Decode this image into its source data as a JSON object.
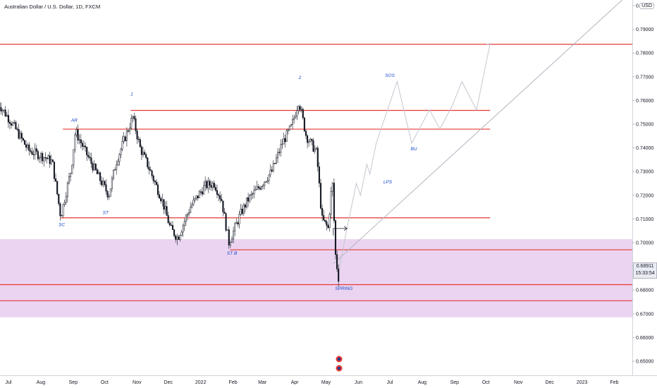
{
  "header": {
    "title": "Australian Dollar / U.S. Dollar, 1D, FXCM",
    "currency": "USD"
  },
  "price_label": {
    "value": "0.68911",
    "countdown": "15:33:54"
  },
  "colors": {
    "level_line": "#e53935",
    "zone_fill": "#e6cdee",
    "trendline": "#b2b5be",
    "candle": "#131722",
    "annotation": "#1848cc"
  },
  "chart_data": {
    "type": "candlestick",
    "title": "Australian Dollar / U.S. Dollar, 1D, FXCM",
    "y_axis": {
      "position": "right",
      "ticks": [
        "0.65000",
        "0.66000",
        "0.67000",
        "0.68000",
        "0.69000",
        "0.70000",
        "0.71000",
        "0.72000",
        "0.73000",
        "0.74000",
        "0.75000",
        "0.76000",
        "0.77000",
        "0.78000",
        "0.79000",
        "0.80000"
      ],
      "range": [
        0.6445,
        0.8025
      ]
    },
    "x_axis": {
      "ticks": [
        "Jul",
        "Aug",
        "Sep",
        "Oct",
        "Nov",
        "Dec",
        "2022",
        "Feb",
        "Mar",
        "Apr",
        "May",
        "Jun",
        "Jul",
        "Aug",
        "Sep",
        "Oct",
        "Nov",
        "Dec",
        "2023",
        "Feb"
      ],
      "tick_dates": [
        "2021-07-01",
        "2021-08-01",
        "2021-09-01",
        "2021-10-01",
        "2021-11-01",
        "2021-12-01",
        "2022-01-01",
        "2022-02-01",
        "2022-03-01",
        "2022-04-01",
        "2022-05-01",
        "2022-06-01",
        "2022-07-01",
        "2022-08-01",
        "2022-09-01",
        "2022-10-01",
        "2022-11-01",
        "2022-12-01",
        "2023-01-01",
        "2023-02-01"
      ]
    },
    "price_path": [
      [
        "2021-06-21",
        0.759
      ],
      [
        "2021-07-05",
        0.75
      ],
      [
        "2021-07-20",
        0.739
      ],
      [
        "2021-08-05",
        0.736
      ],
      [
        "2021-08-12",
        0.734
      ],
      [
        "2021-08-20",
        0.711
      ],
      [
        "2021-08-30",
        0.731
      ],
      [
        "2021-09-03",
        0.747
      ],
      [
        "2021-09-13",
        0.738
      ],
      [
        "2021-09-25",
        0.728
      ],
      [
        "2021-10-05",
        0.72
      ],
      [
        "2021-10-12",
        0.734
      ],
      [
        "2021-10-22",
        0.746
      ],
      [
        "2021-10-28",
        0.753
      ],
      [
        "2021-11-04",
        0.74
      ],
      [
        "2021-11-12",
        0.732
      ],
      [
        "2021-11-25",
        0.718
      ],
      [
        "2021-12-03",
        0.706
      ],
      [
        "2021-12-10",
        0.702
      ],
      [
        "2021-12-22",
        0.715
      ],
      [
        "2022-01-05",
        0.724
      ],
      [
        "2022-01-14",
        0.725
      ],
      [
        "2022-01-21",
        0.718
      ],
      [
        "2022-01-28",
        0.7
      ],
      [
        "2022-02-08",
        0.712
      ],
      [
        "2022-02-15",
        0.718
      ],
      [
        "2022-02-25",
        0.723
      ],
      [
        "2022-03-10",
        0.73
      ],
      [
        "2022-03-20",
        0.742
      ],
      [
        "2022-03-29",
        0.749
      ],
      [
        "2022-04-05",
        0.76
      ],
      [
        "2022-04-12",
        0.745
      ],
      [
        "2022-04-22",
        0.738
      ],
      [
        "2022-04-27",
        0.71
      ],
      [
        "2022-05-03",
        0.706
      ],
      [
        "2022-05-07",
        0.727
      ],
      [
        "2022-05-10",
        0.695
      ],
      [
        "2022-05-12",
        0.688
      ],
      [
        "2022-05-13",
        0.685
      ]
    ],
    "horizontal_levels": [
      0.7837,
      0.7558,
      0.7479,
      0.7105,
      0.697,
      0.6823,
      0.6755
    ],
    "zones": [
      {
        "from": 0.6685,
        "to": 0.7015
      }
    ],
    "trendline": {
      "start": [
        "2022-05-08",
        0.6911
      ],
      "end": [
        "2023-02-10",
        0.803
      ]
    },
    "projection_path": [
      [
        "2022-05-13",
        0.688
      ],
      [
        "2022-05-22",
        0.708
      ],
      [
        "2022-05-30",
        0.725
      ],
      [
        "2022-06-03",
        0.72
      ],
      [
        "2022-06-09",
        0.733
      ],
      [
        "2022-06-12",
        0.729
      ],
      [
        "2022-06-18",
        0.742
      ],
      [
        "2022-07-08",
        0.768
      ],
      [
        "2022-07-22",
        0.742
      ],
      [
        "2022-08-08",
        0.756
      ],
      [
        "2022-08-18",
        0.748
      ],
      [
        "2022-08-30",
        0.758
      ],
      [
        "2022-09-08",
        0.768
      ],
      [
        "2022-09-22",
        0.756
      ],
      [
        "2022-10-05",
        0.784
      ]
    ],
    "breakout_arrow": {
      "from": [
        "2022-05-08",
        0.706
      ],
      "to": [
        "2022-05-21",
        0.706
      ]
    },
    "annotations": [
      {
        "text": "SC",
        "date": "2021-08-21",
        "price": 0.707
      },
      {
        "text": "AR",
        "date": "2021-09-02",
        "price": 0.751
      },
      {
        "text": "ST",
        "date": "2021-10-02",
        "price": 0.712
      },
      {
        "text": "1",
        "date": "2021-10-27",
        "price": 0.762
      },
      {
        "text": "ST B",
        "date": "2022-01-31",
        "price": 0.695
      },
      {
        "text": "2",
        "date": "2022-04-06",
        "price": 0.769
      },
      {
        "text": "SOS",
        "date": "2022-07-01",
        "price": 0.77
      },
      {
        "text": "LPS",
        "date": "2022-06-29",
        "price": 0.725
      },
      {
        "text": "BU",
        "date": "2022-07-24",
        "price": 0.739
      },
      {
        "text": "SPRING",
        "date": "2022-05-18",
        "price": 0.68
      }
    ]
  }
}
